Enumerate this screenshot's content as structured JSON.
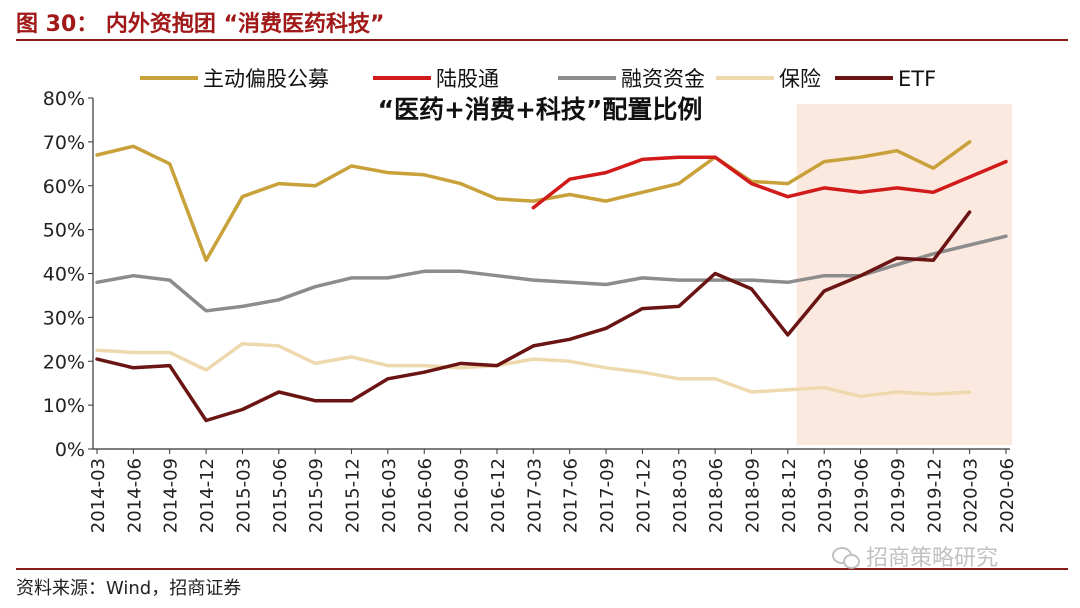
{
  "figure": {
    "title": "图 30：  内外资抱团 “消费医药科技”",
    "source": "资料来源：Wind，招商证券",
    "watermark": "招商策略研究",
    "watermark_icon": "wechat-icon"
  },
  "chart_data": {
    "type": "line",
    "title": "“医药+消费+科技”配置比例",
    "xlabel": "",
    "ylabel": "",
    "ylim": [
      0,
      80
    ],
    "y_ticks": [
      "0%",
      "10%",
      "20%",
      "30%",
      "40%",
      "50%",
      "60%",
      "70%",
      "80%"
    ],
    "grid": false,
    "legend_position": "top",
    "highlight_region": {
      "from": "2019-03",
      "to": "2020-06",
      "color": "#fbe9e0"
    },
    "x": [
      "2014-03",
      "2014-06",
      "2014-09",
      "2014-12",
      "2015-03",
      "2015-06",
      "2015-09",
      "2015-12",
      "2016-03",
      "2016-06",
      "2016-09",
      "2016-12",
      "2017-03",
      "2017-06",
      "2017-09",
      "2017-12",
      "2018-03",
      "2018-06",
      "2018-09",
      "2018-12",
      "2019-03",
      "2019-06",
      "2019-09",
      "2019-12",
      "2020-03",
      "2020-06"
    ],
    "series": [
      {
        "name": "主动偏股公募",
        "color": "#c9a13a",
        "values": [
          67,
          69,
          65,
          43,
          57.5,
          60.5,
          60,
          64.5,
          63,
          62.5,
          60.5,
          57,
          56.5,
          58,
          56.5,
          58.5,
          60.5,
          66.5,
          61,
          60.5,
          65.5,
          66.5,
          68,
          64,
          70,
          null
        ]
      },
      {
        "name": "陆股通",
        "color": "#d11a1a",
        "values": [
          null,
          null,
          null,
          null,
          null,
          null,
          null,
          null,
          null,
          null,
          null,
          null,
          55,
          61.5,
          63,
          66,
          66.5,
          66.5,
          60.5,
          57.5,
          59.5,
          58.5,
          59.5,
          58.5,
          62,
          65.5
        ]
      },
      {
        "name": "融资资金",
        "color": "#8c8c8c",
        "values": [
          38,
          39.5,
          38.5,
          31.5,
          32.5,
          34,
          37,
          39,
          39,
          40.5,
          40.5,
          39.5,
          38.5,
          38,
          37.5,
          39,
          38.5,
          38.5,
          38.5,
          38,
          39.5,
          39.5,
          42,
          44.5,
          46.5,
          48.5
        ]
      },
      {
        "name": "保险",
        "color": "#eed9ae",
        "values": [
          22.5,
          22,
          22,
          18,
          24,
          23.5,
          19.5,
          21,
          19,
          19,
          18.5,
          19,
          20.5,
          20,
          18.5,
          17.5,
          16,
          16,
          13,
          13.5,
          14,
          12,
          13,
          12.5,
          13,
          null
        ]
      },
      {
        "name": "ETF",
        "color": "#6b1414",
        "values": [
          20.5,
          18.5,
          19,
          6.5,
          9,
          13,
          11,
          11,
          16,
          17.5,
          19.5,
          19,
          23.5,
          25,
          27.5,
          32,
          32.5,
          40,
          36.5,
          26,
          36,
          39.5,
          43.5,
          43,
          54,
          null
        ]
      }
    ]
  }
}
